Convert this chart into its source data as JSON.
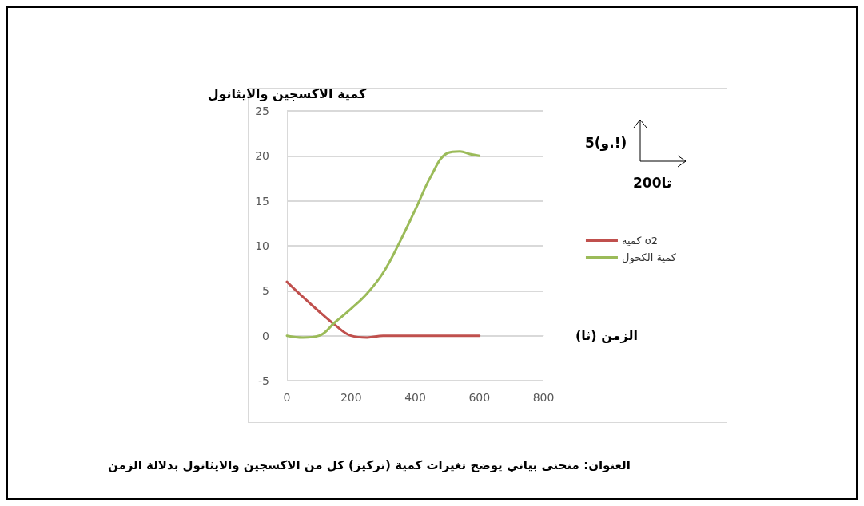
{
  "chart_data": {
    "type": "line",
    "title": "العنوان: منحنى بياني يوضح تغيرات كمية (تركيز) كل من الاكسجين والايثانول بدلالة الزمن",
    "xlabel": "الزمن (ثا)",
    "ylabel": "كمية الاكسجين والايثانول",
    "annotations": [
      "5(و.!)",
      "200ثا"
    ],
    "series": [
      {
        "name": "كمية o2",
        "color": "#c0504d",
        "x": [
          0,
          50,
          100,
          150,
          200,
          250,
          300,
          400,
          500,
          600
        ],
        "values": [
          6,
          4.3,
          2.7,
          1.2,
          0,
          -0.2,
          0,
          0,
          0,
          0
        ]
      },
      {
        "name": "كمية الكحول",
        "color": "#9bbb59",
        "x": [
          0,
          50,
          100,
          150,
          200,
          250,
          300,
          350,
          400,
          450,
          500,
          540,
          570,
          600
        ],
        "values": [
          0,
          -0.2,
          0,
          1.5,
          3,
          4.7,
          7,
          10.3,
          14,
          17.8,
          20.3,
          20.5,
          20.2,
          20
        ]
      }
    ],
    "xlim": [
      0,
      800
    ],
    "xticks": [
      0,
      200,
      400,
      600,
      800
    ],
    "ylim": [
      -5,
      25
    ],
    "yticks": [
      -5,
      0,
      5,
      10,
      15,
      20,
      25
    ],
    "grid": "y",
    "legend": "right",
    "marker": "none",
    "line_style": "solid"
  }
}
